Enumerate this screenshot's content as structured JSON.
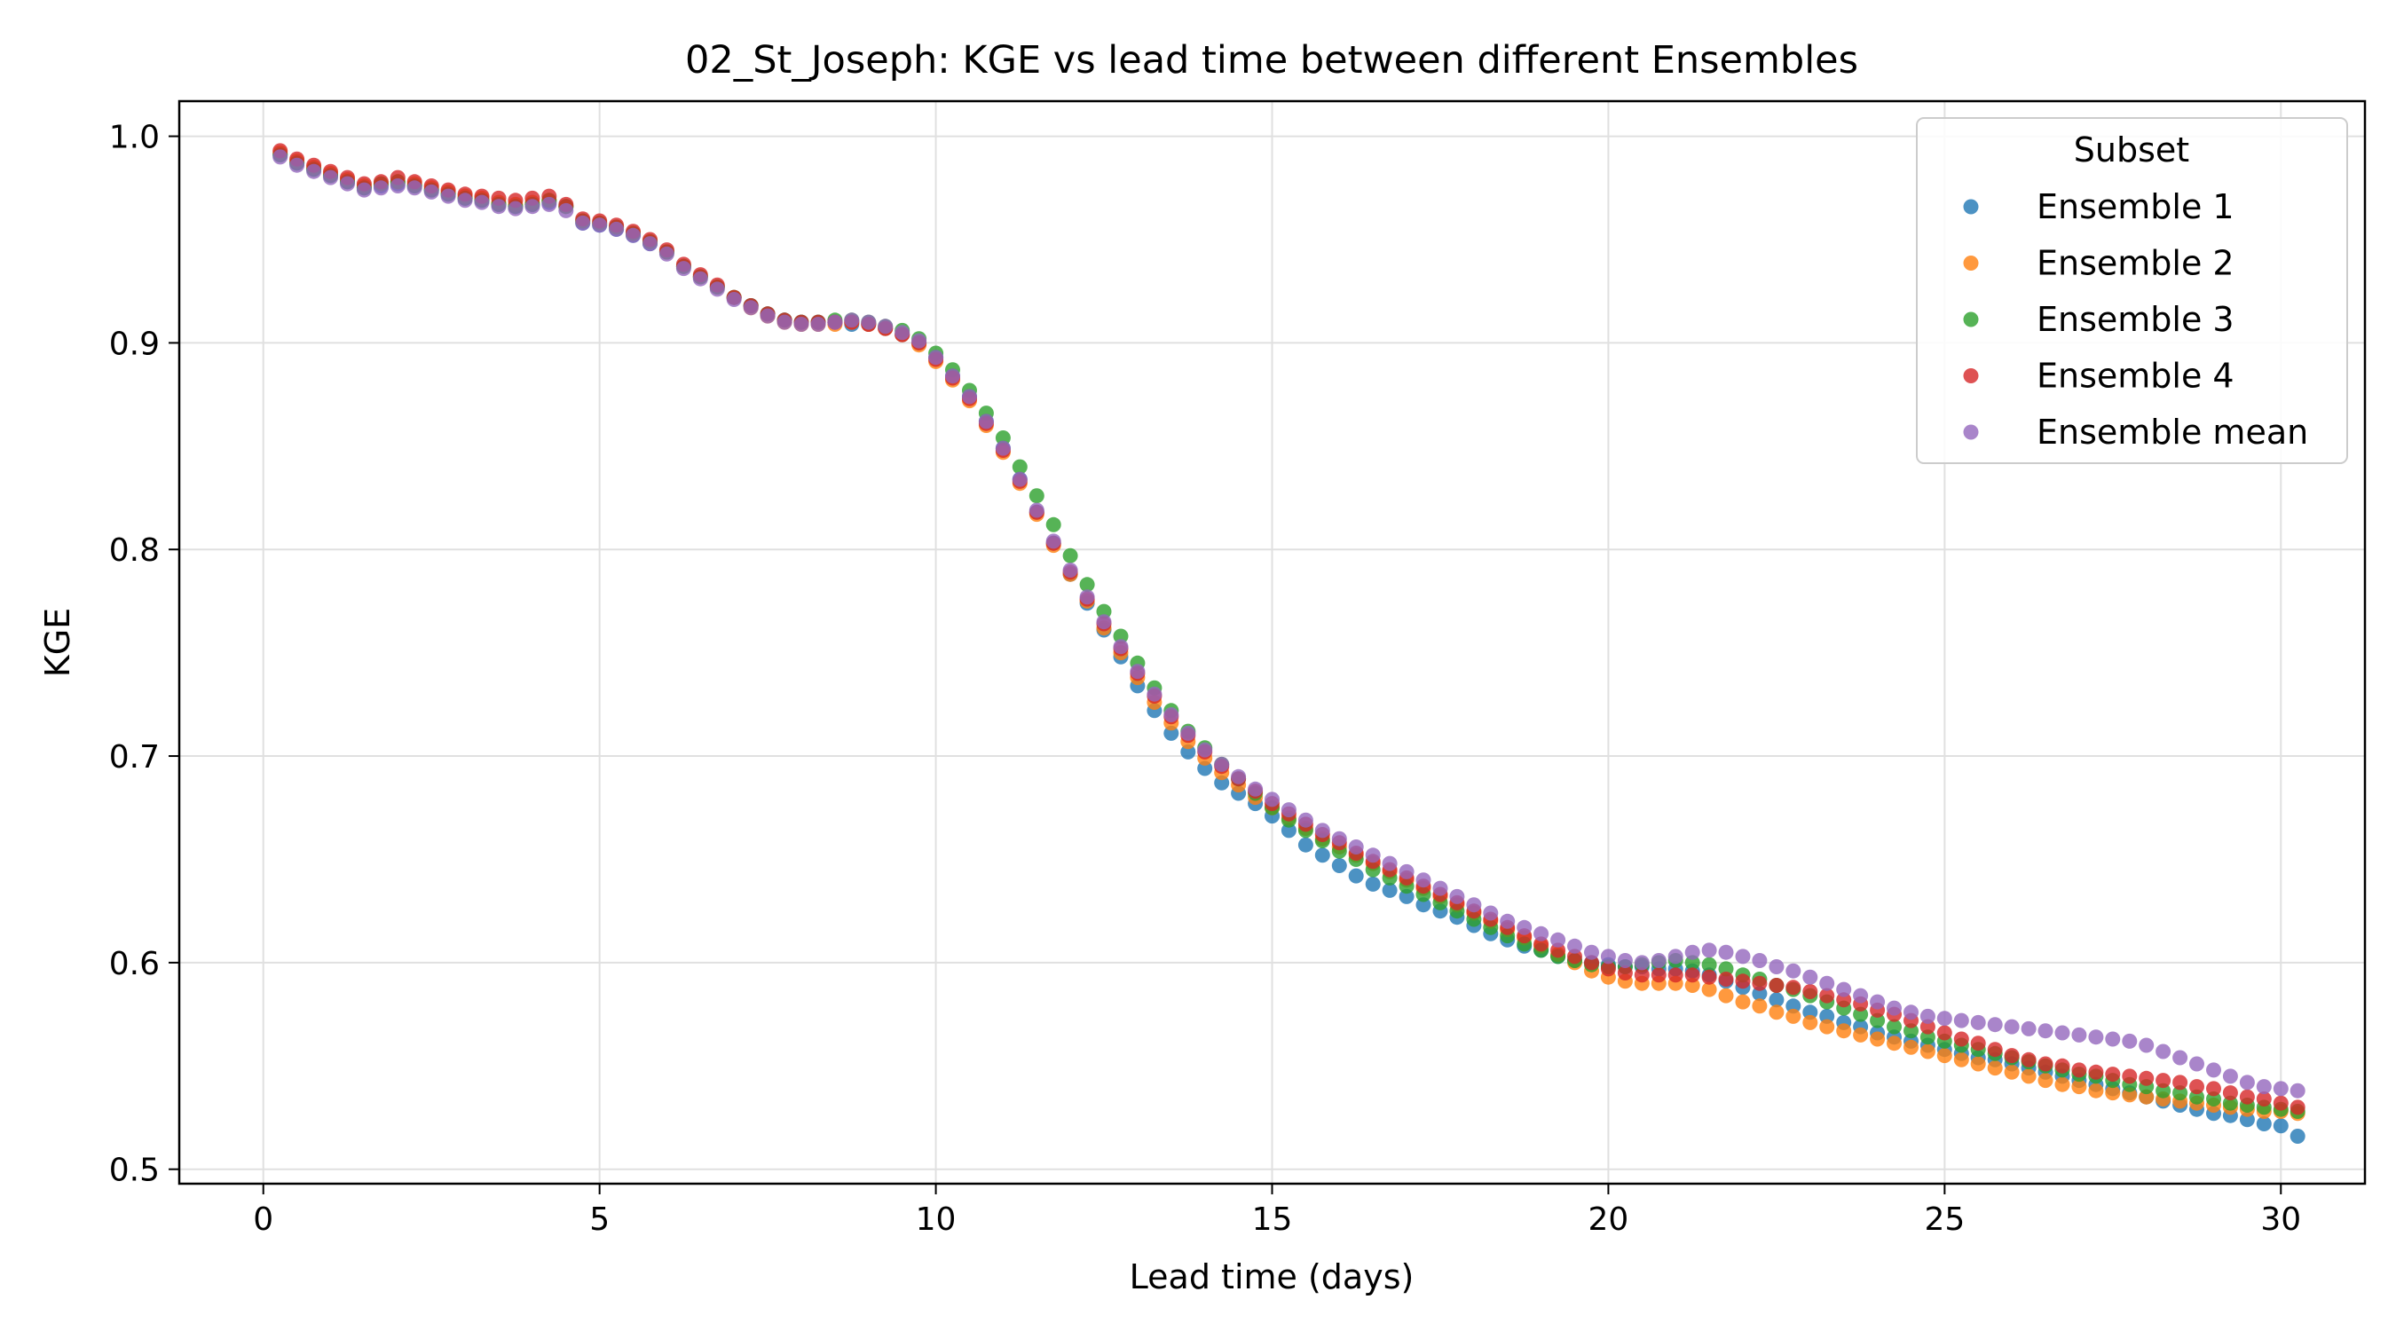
{
  "chart_data": {
    "type": "scatter",
    "title": "02_St_Joseph: KGE vs lead time between different Ensembles",
    "xlabel": "Lead time (days)",
    "ylabel": "KGE",
    "xlim": [
      -1.25,
      31.25
    ],
    "ylim": [
      0.493,
      1.017
    ],
    "xticks": [
      0,
      5,
      10,
      15,
      20,
      25,
      30
    ],
    "yticks": [
      0.5,
      0.6,
      0.7,
      0.8,
      0.9,
      1.0
    ],
    "xtick_labels": [
      "0",
      "5",
      "10",
      "15",
      "20",
      "25",
      "30"
    ],
    "ytick_labels": [
      "0.5",
      "0.6",
      "0.7",
      "0.8",
      "0.9",
      "1.0"
    ],
    "grid": true,
    "legend": {
      "title": "Subset",
      "position": "top-right"
    },
    "x_step_days": 0.25,
    "series": [
      {
        "name": "Ensemble 1",
        "color": "#1f77b4",
        "values": [
          0.991,
          0.987,
          0.984,
          0.981,
          0.978,
          0.975,
          0.976,
          0.977,
          0.976,
          0.974,
          0.972,
          0.97,
          0.969,
          0.967,
          0.966,
          0.967,
          0.968,
          0.966,
          0.958,
          0.957,
          0.955,
          0.952,
          0.948,
          0.944,
          0.937,
          0.932,
          0.927,
          0.922,
          0.918,
          0.914,
          0.911,
          0.91,
          0.91,
          0.91,
          0.909,
          0.909,
          0.907,
          0.904,
          0.9,
          0.893,
          0.884,
          0.874,
          0.862,
          0.849,
          0.834,
          0.818,
          0.803,
          0.788,
          0.774,
          0.761,
          0.748,
          0.734,
          0.722,
          0.711,
          0.702,
          0.694,
          0.687,
          0.682,
          0.677,
          0.671,
          0.664,
          0.657,
          0.652,
          0.647,
          0.642,
          0.638,
          0.635,
          0.632,
          0.628,
          0.625,
          0.622,
          0.618,
          0.614,
          0.611,
          0.608,
          0.606,
          0.603,
          0.601,
          0.6,
          0.599,
          0.598,
          0.598,
          0.597,
          0.597,
          0.596,
          0.594,
          0.591,
          0.588,
          0.585,
          0.582,
          0.579,
          0.576,
          0.574,
          0.571,
          0.569,
          0.566,
          0.564,
          0.562,
          0.56,
          0.558,
          0.556,
          0.554,
          0.553,
          0.551,
          0.549,
          0.547,
          0.545,
          0.543,
          0.541,
          0.539,
          0.537,
          0.535,
          0.533,
          0.531,
          0.529,
          0.527,
          0.526,
          0.524,
          0.522,
          0.521,
          0.516
        ]
      },
      {
        "name": "Ensemble 2",
        "color": "#ff7f0e",
        "values": [
          0.992,
          0.988,
          0.985,
          0.982,
          0.979,
          0.976,
          0.977,
          0.978,
          0.977,
          0.975,
          0.973,
          0.971,
          0.97,
          0.968,
          0.967,
          0.968,
          0.969,
          0.966,
          0.959,
          0.958,
          0.956,
          0.953,
          0.949,
          0.944,
          0.937,
          0.932,
          0.927,
          0.922,
          0.917,
          0.913,
          0.91,
          0.909,
          0.909,
          0.909,
          0.91,
          0.909,
          0.907,
          0.904,
          0.899,
          0.891,
          0.882,
          0.872,
          0.86,
          0.847,
          0.832,
          0.817,
          0.802,
          0.788,
          0.775,
          0.762,
          0.75,
          0.738,
          0.726,
          0.716,
          0.707,
          0.699,
          0.692,
          0.686,
          0.68,
          0.675,
          0.67,
          0.665,
          0.66,
          0.656,
          0.652,
          0.648,
          0.644,
          0.64,
          0.636,
          0.632,
          0.628,
          0.624,
          0.62,
          0.616,
          0.612,
          0.608,
          0.604,
          0.6,
          0.596,
          0.593,
          0.591,
          0.59,
          0.59,
          0.59,
          0.589,
          0.587,
          0.584,
          0.581,
          0.579,
          0.576,
          0.574,
          0.571,
          0.569,
          0.567,
          0.565,
          0.563,
          0.561,
          0.559,
          0.557,
          0.555,
          0.553,
          0.551,
          0.549,
          0.547,
          0.545,
          0.543,
          0.541,
          0.54,
          0.538,
          0.537,
          0.536,
          0.535,
          0.534,
          0.533,
          0.532,
          0.531,
          0.53,
          0.529,
          0.528,
          0.528,
          0.527
        ]
      },
      {
        "name": "Ensemble 3",
        "color": "#2ca02c",
        "values": [
          0.991,
          0.987,
          0.984,
          0.981,
          0.978,
          0.975,
          0.977,
          0.978,
          0.976,
          0.974,
          0.972,
          0.97,
          0.969,
          0.967,
          0.966,
          0.967,
          0.969,
          0.966,
          0.959,
          0.958,
          0.956,
          0.953,
          0.949,
          0.944,
          0.937,
          0.932,
          0.927,
          0.922,
          0.918,
          0.914,
          0.911,
          0.91,
          0.91,
          0.911,
          0.911,
          0.91,
          0.908,
          0.906,
          0.902,
          0.895,
          0.887,
          0.877,
          0.866,
          0.854,
          0.84,
          0.826,
          0.812,
          0.797,
          0.783,
          0.77,
          0.758,
          0.745,
          0.733,
          0.722,
          0.712,
          0.704,
          0.696,
          0.689,
          0.682,
          0.675,
          0.669,
          0.664,
          0.659,
          0.654,
          0.65,
          0.645,
          0.641,
          0.637,
          0.633,
          0.629,
          0.625,
          0.621,
          0.617,
          0.613,
          0.609,
          0.606,
          0.603,
          0.601,
          0.599,
          0.598,
          0.598,
          0.599,
          0.6,
          0.601,
          0.6,
          0.599,
          0.597,
          0.594,
          0.592,
          0.589,
          0.587,
          0.584,
          0.581,
          0.578,
          0.575,
          0.572,
          0.569,
          0.567,
          0.564,
          0.562,
          0.56,
          0.558,
          0.556,
          0.554,
          0.552,
          0.55,
          0.548,
          0.546,
          0.545,
          0.543,
          0.541,
          0.54,
          0.538,
          0.537,
          0.535,
          0.534,
          0.532,
          0.531,
          0.53,
          0.529,
          0.528
        ]
      },
      {
        "name": "Ensemble 4",
        "color": "#d62728",
        "values": [
          0.993,
          0.989,
          0.986,
          0.983,
          0.98,
          0.977,
          0.978,
          0.98,
          0.978,
          0.976,
          0.974,
          0.972,
          0.971,
          0.97,
          0.969,
          0.97,
          0.971,
          0.967,
          0.96,
          0.959,
          0.957,
          0.954,
          0.95,
          0.945,
          0.938,
          0.933,
          0.928,
          0.922,
          0.918,
          0.914,
          0.911,
          0.91,
          0.91,
          0.91,
          0.91,
          0.909,
          0.907,
          0.904,
          0.9,
          0.892,
          0.883,
          0.873,
          0.861,
          0.848,
          0.833,
          0.818,
          0.803,
          0.789,
          0.776,
          0.764,
          0.752,
          0.74,
          0.729,
          0.719,
          0.71,
          0.702,
          0.695,
          0.689,
          0.683,
          0.677,
          0.672,
          0.667,
          0.662,
          0.658,
          0.653,
          0.649,
          0.645,
          0.641,
          0.637,
          0.633,
          0.629,
          0.625,
          0.621,
          0.617,
          0.613,
          0.609,
          0.606,
          0.603,
          0.6,
          0.597,
          0.595,
          0.594,
          0.594,
          0.594,
          0.594,
          0.593,
          0.592,
          0.591,
          0.59,
          0.589,
          0.588,
          0.586,
          0.584,
          0.582,
          0.58,
          0.577,
          0.575,
          0.572,
          0.569,
          0.566,
          0.563,
          0.561,
          0.558,
          0.555,
          0.553,
          0.551,
          0.55,
          0.548,
          0.547,
          0.546,
          0.545,
          0.544,
          0.543,
          0.542,
          0.54,
          0.539,
          0.537,
          0.535,
          0.534,
          0.532,
          0.53
        ]
      },
      {
        "name": "Ensemble mean",
        "color": "#9467bd",
        "values": [
          0.99,
          0.986,
          0.983,
          0.98,
          0.977,
          0.974,
          0.975,
          0.976,
          0.975,
          0.973,
          0.971,
          0.969,
          0.968,
          0.966,
          0.965,
          0.966,
          0.967,
          0.964,
          0.958,
          0.957,
          0.955,
          0.952,
          0.948,
          0.943,
          0.936,
          0.931,
          0.926,
          0.921,
          0.917,
          0.913,
          0.91,
          0.909,
          0.909,
          0.91,
          0.911,
          0.91,
          0.908,
          0.905,
          0.901,
          0.893,
          0.884,
          0.874,
          0.862,
          0.849,
          0.834,
          0.819,
          0.804,
          0.79,
          0.777,
          0.765,
          0.753,
          0.741,
          0.73,
          0.72,
          0.711,
          0.703,
          0.696,
          0.69,
          0.684,
          0.679,
          0.674,
          0.669,
          0.664,
          0.66,
          0.656,
          0.652,
          0.648,
          0.644,
          0.64,
          0.636,
          0.632,
          0.628,
          0.624,
          0.62,
          0.617,
          0.614,
          0.611,
          0.608,
          0.605,
          0.603,
          0.601,
          0.6,
          0.601,
          0.603,
          0.605,
          0.606,
          0.605,
          0.603,
          0.601,
          0.598,
          0.596,
          0.593,
          0.59,
          0.587,
          0.584,
          0.581,
          0.578,
          0.576,
          0.574,
          0.573,
          0.572,
          0.571,
          0.57,
          0.569,
          0.568,
          0.567,
          0.566,
          0.565,
          0.564,
          0.563,
          0.562,
          0.56,
          0.557,
          0.554,
          0.551,
          0.548,
          0.545,
          0.542,
          0.54,
          0.539,
          0.538
        ]
      }
    ]
  }
}
